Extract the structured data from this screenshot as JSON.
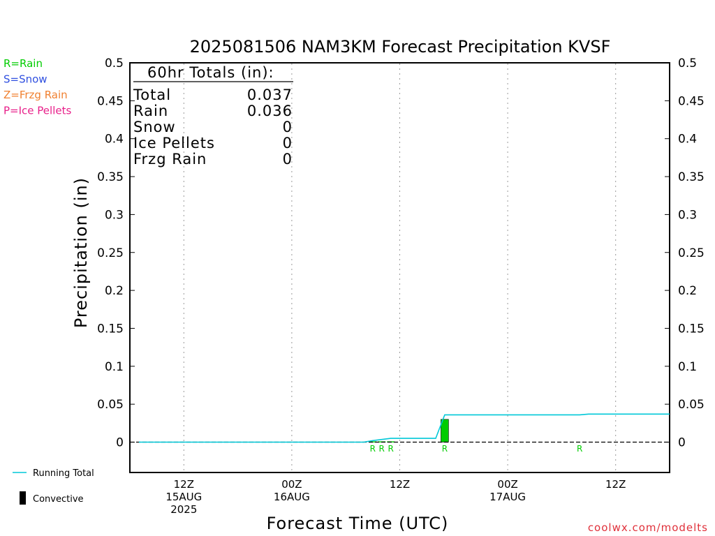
{
  "chart_data": {
    "type": "bar",
    "title": "2025081506 NAM3KM Forecast Precipitation KVSF",
    "xlabel": "Forecast Time (UTC)",
    "ylabel": "Precipitation (in)",
    "ylim": [
      0,
      0.5
    ],
    "y_ticks": [
      "0.5",
      "0.45",
      "0.4",
      "0.35",
      "0.3",
      "0.25",
      "0.2",
      "0.15",
      "0.1",
      "0.05",
      "0"
    ],
    "y_tick_values": [
      0.5,
      0.45,
      0.4,
      0.35,
      0.3,
      0.25,
      0.2,
      0.15,
      0.1,
      0.05,
      0
    ],
    "x_ticks": [
      {
        "hour": 12,
        "lines": [
          "12Z",
          "15AUG",
          "2025"
        ]
      },
      {
        "hour": 24,
        "lines": [
          "00Z",
          "16AUG"
        ]
      },
      {
        "hour": 36,
        "lines": [
          "12Z"
        ]
      },
      {
        "hour": 48,
        "lines": [
          "00Z",
          "17AUG"
        ]
      },
      {
        "hour": 60,
        "lines": [
          "12Z"
        ]
      }
    ],
    "xlim_hours": [
      6,
      66
    ],
    "grid": true,
    "series": [
      {
        "name": "Running Total",
        "type": "line",
        "color": "#00c8d8",
        "x": [
          7,
          32,
          33,
          35,
          40,
          41,
          42,
          56,
          57,
          58,
          66
        ],
        "y": [
          0,
          0,
          0.002,
          0.005,
          0.005,
          0.036,
          0.036,
          0.036,
          0.037,
          0.037,
          0.037
        ]
      },
      {
        "name": "Rain",
        "type": "bar",
        "color": "#00cc00",
        "x": [
          33,
          34,
          35,
          41
        ],
        "y": [
          0.001,
          0.001,
          0.001,
          0.03
        ]
      }
    ],
    "precip_type_labels": [
      {
        "text": "R",
        "hour": 33,
        "color": "#00cc00"
      },
      {
        "text": "R",
        "hour": 34,
        "color": "#00cc00"
      },
      {
        "text": "R",
        "hour": 35,
        "color": "#00cc00"
      },
      {
        "text": "R",
        "hour": 41,
        "color": "#00cc00"
      },
      {
        "text": "R",
        "hour": 56,
        "color": "#00cc00"
      }
    ]
  },
  "type_legend": [
    {
      "text": "R=Rain",
      "color": "#00cc00"
    },
    {
      "text": "S=Snow",
      "color": "#3050e0"
    },
    {
      "text": "Z=Frzg Rain",
      "color": "#f08030"
    },
    {
      "text": "P=Ice Pellets",
      "color": "#e8208a"
    }
  ],
  "totals": {
    "header": "60hr Totals (in):",
    "rows": [
      {
        "label": "Total",
        "value": "0.037"
      },
      {
        "label": "Rain",
        "value": "0.036"
      },
      {
        "label": "Snow",
        "value": "0"
      },
      {
        "label": "Ice Pellets",
        "value": "0"
      },
      {
        "label": "Frzg Rain",
        "value": "0"
      }
    ]
  },
  "bottom_legend": {
    "running_total": "Running Total",
    "convective": "Convective"
  },
  "credit": "coolwx.com/modelts",
  "colors": {
    "running_total": "#00c8d8",
    "rain": "#00cc00",
    "convective": "#000000"
  }
}
